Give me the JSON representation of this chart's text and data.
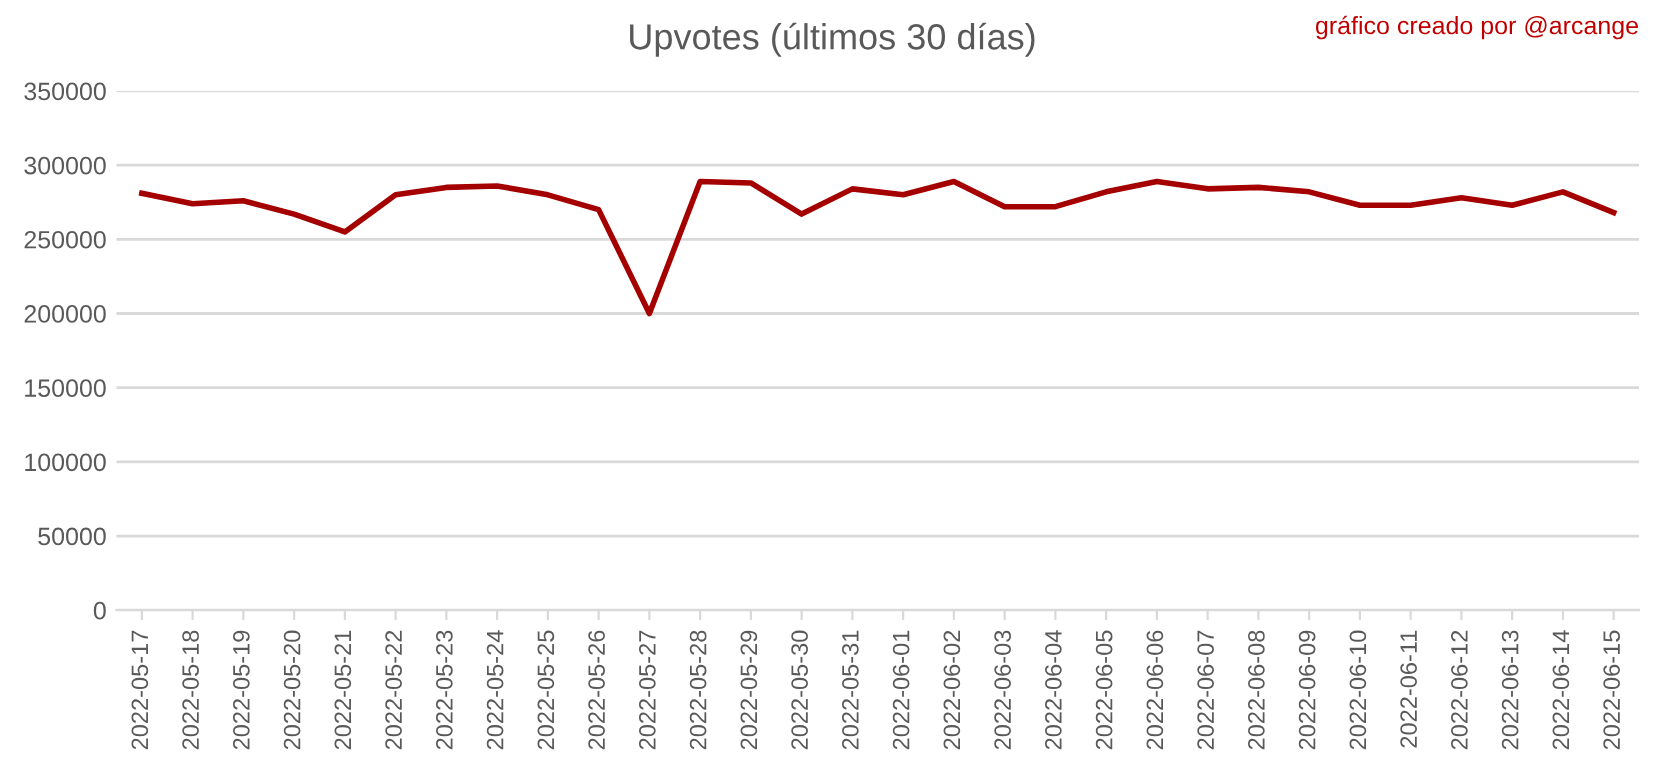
{
  "chart_data": {
    "type": "line",
    "title": "Upvotes (últimos 30 días)",
    "annotations": [
      "gráfico creado por @arcange"
    ],
    "categories": [
      "2022-05-17",
      "2022-05-18",
      "2022-05-19",
      "2022-05-20",
      "2022-05-21",
      "2022-05-22",
      "2022-05-23",
      "2022-05-24",
      "2022-05-25",
      "2022-05-26",
      "2022-05-27",
      "2022-05-28",
      "2022-05-29",
      "2022-05-30",
      "2022-05-31",
      "2022-06-01",
      "2022-06-02",
      "2022-06-03",
      "2022-06-04",
      "2022-06-05",
      "2022-06-06",
      "2022-06-07",
      "2022-06-08",
      "2022-06-09",
      "2022-06-10",
      "2022-06-11",
      "2022-06-12",
      "2022-06-13",
      "2022-06-14",
      "2022-06-15"
    ],
    "series": [
      {
        "color": "#a50000",
        "values": [
          281000,
          274000,
          276000,
          267000,
          255000,
          280000,
          285000,
          286000,
          280000,
          270000,
          200000,
          289000,
          288000,
          267000,
          284000,
          280000,
          289000,
          272000,
          272000,
          282000,
          289000,
          284000,
          285000,
          282000,
          273000,
          273000,
          278000,
          273000,
          282000,
          268000
        ]
      }
    ],
    "ylim": [
      0,
      350000
    ],
    "yticks": [
      0,
      50000,
      100000,
      150000,
      200000,
      250000,
      300000,
      350000
    ],
    "grid": "y",
    "marker": "none",
    "line_style": "solid"
  }
}
